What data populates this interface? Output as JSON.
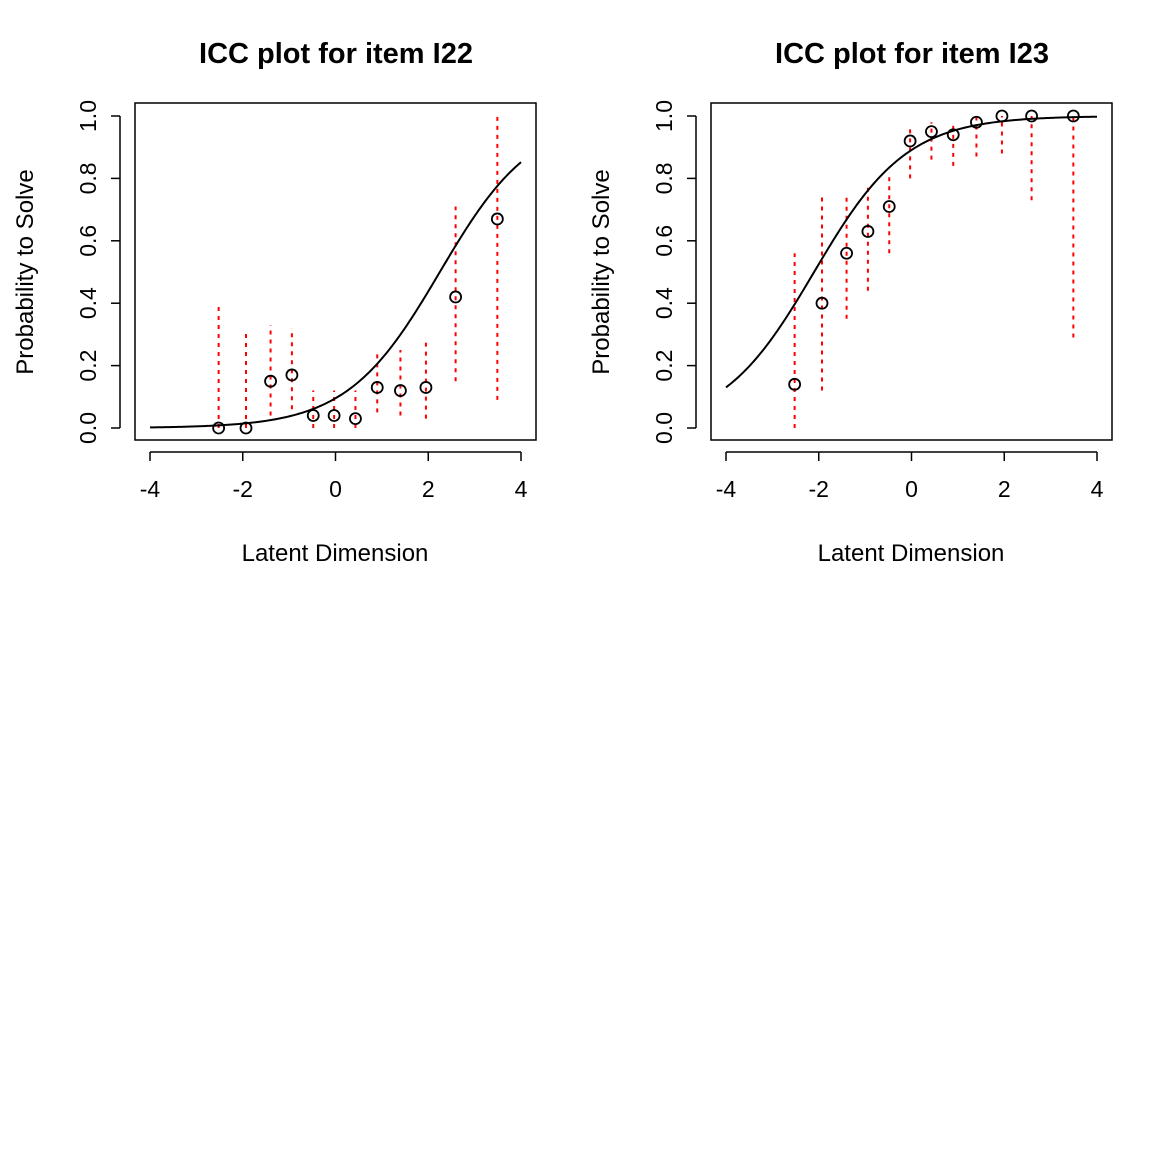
{
  "chart_data": [
    {
      "type": "scatter",
      "title": "ICC plot for item  I22",
      "xlabel": "Latent Dimension",
      "ylabel": "Probability to Solve",
      "xlim": [
        -4,
        4
      ],
      "ylim": [
        0,
        1
      ],
      "x_ticks": [
        "-4",
        "-2",
        "0",
        "2",
        "4"
      ],
      "y_ticks": [
        "0.0",
        "0.2",
        "0.4",
        "0.6",
        "0.8",
        "1.0"
      ],
      "grid": false,
      "legend": "none",
      "curve": {
        "name": "model ICC",
        "color": "#000000",
        "difficulty": 2.25,
        "discrimination": 1.0
      },
      "points": [
        {
          "x": -2.52,
          "y": 0.0,
          "ci": [
            0.0,
            0.39
          ]
        },
        {
          "x": -1.93,
          "y": 0.0,
          "ci": [
            0.0,
            0.31
          ]
        },
        {
          "x": -1.4,
          "y": 0.15,
          "ci": [
            0.04,
            0.33
          ]
        },
        {
          "x": -0.94,
          "y": 0.17,
          "ci": [
            0.06,
            0.32
          ]
        },
        {
          "x": -0.48,
          "y": 0.04,
          "ci": [
            0.0,
            0.12
          ]
        },
        {
          "x": -0.03,
          "y": 0.04,
          "ci": [
            0.0,
            0.12
          ]
        },
        {
          "x": 0.43,
          "y": 0.03,
          "ci": [
            0.0,
            0.12
          ]
        },
        {
          "x": 0.9,
          "y": 0.13,
          "ci": [
            0.05,
            0.24
          ]
        },
        {
          "x": 1.4,
          "y": 0.12,
          "ci": [
            0.04,
            0.25
          ]
        },
        {
          "x": 1.95,
          "y": 0.13,
          "ci": [
            0.03,
            0.29
          ]
        },
        {
          "x": 2.59,
          "y": 0.42,
          "ci": [
            0.15,
            0.71
          ]
        },
        {
          "x": 3.49,
          "y": 0.67,
          "ci": [
            0.09,
            1.0
          ]
        }
      ],
      "colors": {
        "ci": "#ff0000",
        "points": "#000000"
      }
    },
    {
      "type": "scatter",
      "title": "ICC plot for item  I23",
      "xlabel": "Latent Dimension",
      "ylabel": "Probability to Solve",
      "xlim": [
        -4,
        4
      ],
      "ylim": [
        0,
        1
      ],
      "x_ticks": [
        "-4",
        "-2",
        "0",
        "2",
        "4"
      ],
      "y_ticks": [
        "0.0",
        "0.2",
        "0.4",
        "0.6",
        "0.8",
        "1.0"
      ],
      "grid": false,
      "legend": "none",
      "curve": {
        "name": "model ICC",
        "color": "#000000",
        "difficulty": -2.1,
        "discrimination": 1.0
      },
      "points": [
        {
          "x": -2.52,
          "y": 0.14,
          "ci": [
            0.0,
            0.56
          ]
        },
        {
          "x": -1.93,
          "y": 0.4,
          "ci": [
            0.12,
            0.74
          ]
        },
        {
          "x": -1.4,
          "y": 0.56,
          "ci": [
            0.35,
            0.74
          ]
        },
        {
          "x": -0.94,
          "y": 0.63,
          "ci": [
            0.44,
            0.77
          ]
        },
        {
          "x": -0.48,
          "y": 0.71,
          "ci": [
            0.56,
            0.82
          ]
        },
        {
          "x": -0.03,
          "y": 0.92,
          "ci": [
            0.8,
            0.96
          ]
        },
        {
          "x": 0.43,
          "y": 0.95,
          "ci": [
            0.86,
            0.98
          ]
        },
        {
          "x": 0.9,
          "y": 0.94,
          "ci": [
            0.84,
            0.98
          ]
        },
        {
          "x": 1.4,
          "y": 0.98,
          "ci": [
            0.87,
            1.0
          ]
        },
        {
          "x": 1.95,
          "y": 1.0,
          "ci": [
            0.88,
            1.0
          ]
        },
        {
          "x": 2.59,
          "y": 1.0,
          "ci": [
            0.73,
            1.0
          ]
        },
        {
          "x": 3.49,
          "y": 1.0,
          "ci": [
            0.29,
            1.0
          ]
        }
      ],
      "colors": {
        "ci": "#ff0000",
        "points": "#000000"
      }
    }
  ]
}
